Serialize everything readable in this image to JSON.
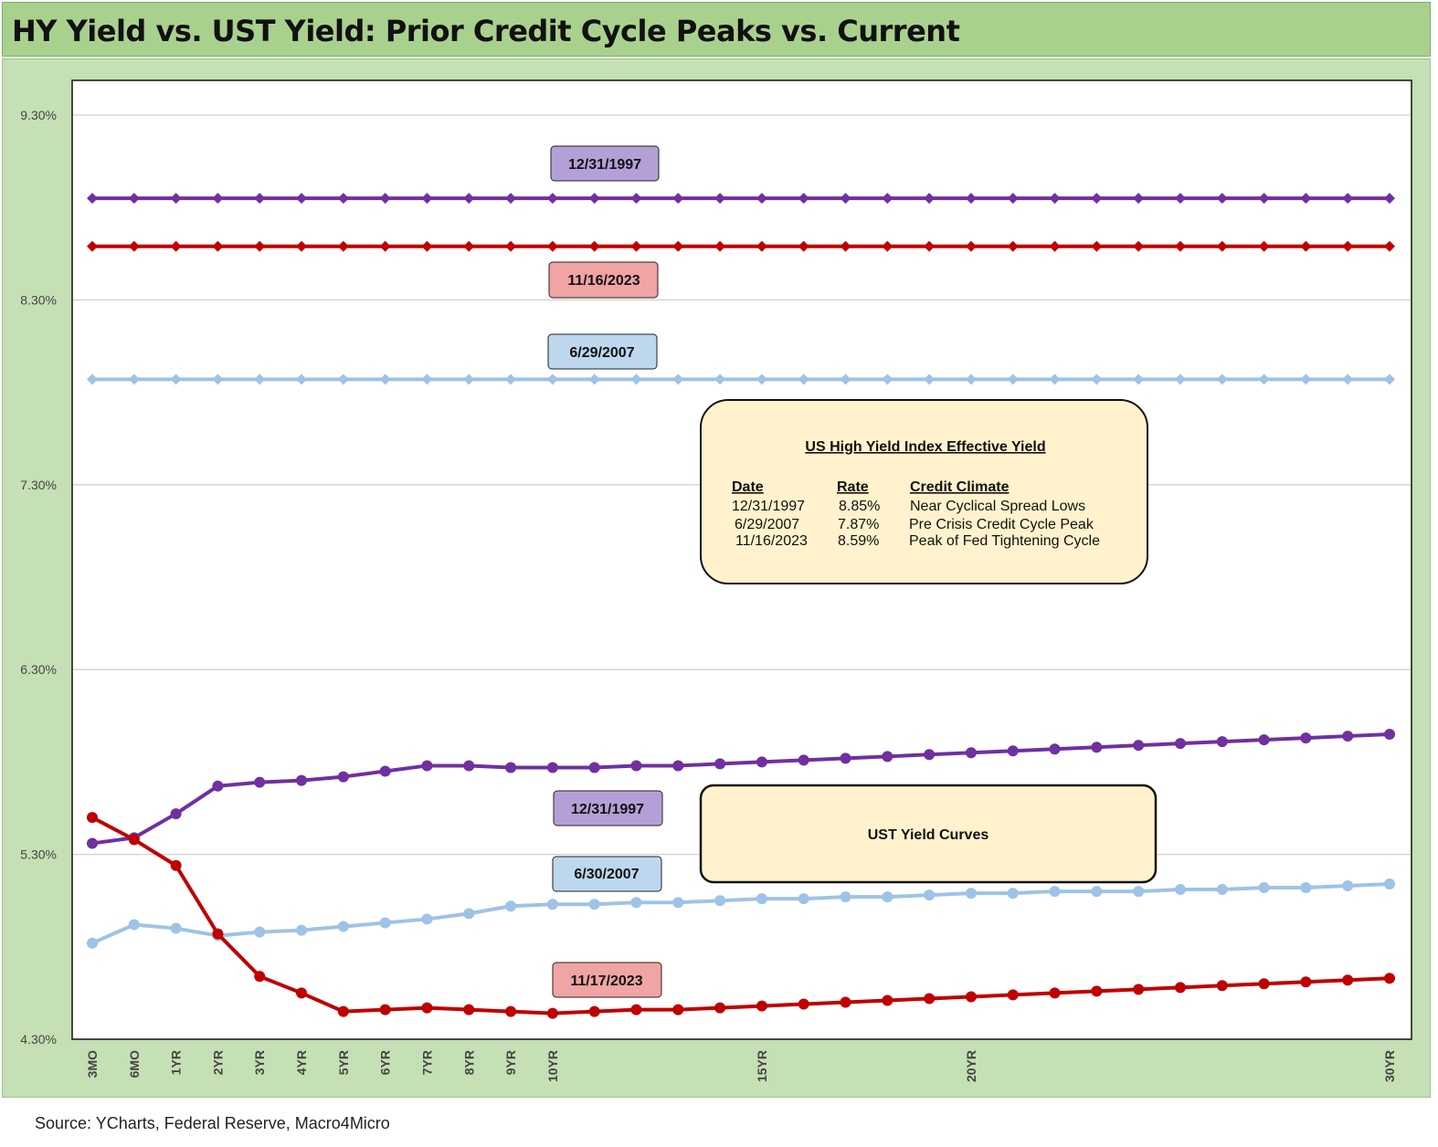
{
  "header": {
    "title": "HY Yield vs. UST Yield: Prior Credit Cycle Peaks vs. Current"
  },
  "footer": {
    "source": "Source: YCharts, Federal Reserve, Macro4Micro"
  },
  "chart_data": {
    "type": "line",
    "title": "HY Yield vs. UST Yield: Prior Credit Cycle Peaks vs. Current",
    "xlabel": "",
    "ylabel": "",
    "ylim": [
      4.3,
      9.3
    ],
    "y_ticks": [
      "9.30%",
      "8.30%",
      "7.30%",
      "6.30%",
      "5.30%",
      "4.30%"
    ],
    "x_tick_labels": [
      "3MO",
      "6MO",
      "1YR",
      "2YR",
      "3YR",
      "4YR",
      "5YR",
      "6YR",
      "7YR",
      "8YR",
      "9YR",
      "10YR",
      "15YR",
      "20YR",
      "30YR"
    ],
    "grid": true,
    "hy_series": [
      {
        "name": "12/31/1997",
        "value": 8.85,
        "color": "#7030a0"
      },
      {
        "name": "11/16/2023",
        "value": 8.59,
        "color": "#c00000"
      },
      {
        "name": "6/29/2007",
        "value": 7.87,
        "color": "#9dc3e6"
      }
    ],
    "ust_series": [
      {
        "name": "12/31/1997",
        "color": "#7030a0",
        "values": [
          5.36,
          5.39,
          5.52,
          5.67,
          5.69,
          5.7,
          5.72,
          5.75,
          5.78,
          5.78,
          5.77,
          5.77,
          5.77,
          5.78,
          5.78,
          5.79,
          5.8,
          5.81,
          5.82,
          5.83,
          5.84,
          5.85,
          5.86,
          5.87,
          5.88,
          5.89,
          5.9,
          5.91,
          5.92,
          5.93,
          5.94,
          5.95
        ]
      },
      {
        "name": "6/30/2007",
        "color": "#9dc3e6",
        "values": [
          4.82,
          4.92,
          4.9,
          4.86,
          4.88,
          4.89,
          4.91,
          4.93,
          4.95,
          4.98,
          5.02,
          5.03,
          5.03,
          5.04,
          5.04,
          5.05,
          5.06,
          5.06,
          5.07,
          5.07,
          5.08,
          5.09,
          5.09,
          5.1,
          5.1,
          5.1,
          5.11,
          5.11,
          5.12,
          5.12,
          5.13,
          5.14
        ]
      },
      {
        "name": "11/17/2023",
        "color": "#c00000",
        "values": [
          5.5,
          5.38,
          5.24,
          4.87,
          4.64,
          4.55,
          4.45,
          4.46,
          4.47,
          4.46,
          4.45,
          4.44,
          4.45,
          4.46,
          4.46,
          4.47,
          4.48,
          4.49,
          4.5,
          4.51,
          4.52,
          4.53,
          4.54,
          4.55,
          4.56,
          4.57,
          4.58,
          4.59,
          4.6,
          4.61,
          4.62,
          4.63
        ]
      }
    ],
    "annotations": {
      "hy_box": {
        "title": "US High Yield Index Effective Yield",
        "headers": [
          "Date",
          "Rate",
          "Credit Climate"
        ],
        "rows": [
          [
            "12/31/1997",
            "8.85%",
            "Near Cyclical Spread Lows"
          ],
          [
            "6/29/2007",
            "7.87%",
            "Pre Crisis Credit Cycle Peak"
          ],
          [
            "11/16/2023",
            "8.59%",
            "Peak of Fed Tightening Cycle"
          ]
        ]
      },
      "ust_box": {
        "text": "UST Yield Curves"
      },
      "tags": [
        {
          "text": "12/31/1997",
          "color": "#b4a0d6"
        },
        {
          "text": "11/16/2023",
          "color": "#f0a4a4"
        },
        {
          "text": "6/29/2007",
          "color": "#bdd7ee"
        },
        {
          "text": "12/31/1997",
          "color": "#b4a0d6"
        },
        {
          "text": "6/30/2007",
          "color": "#bdd7ee"
        },
        {
          "text": "11/17/2023",
          "color": "#f0a4a4"
        }
      ]
    }
  }
}
